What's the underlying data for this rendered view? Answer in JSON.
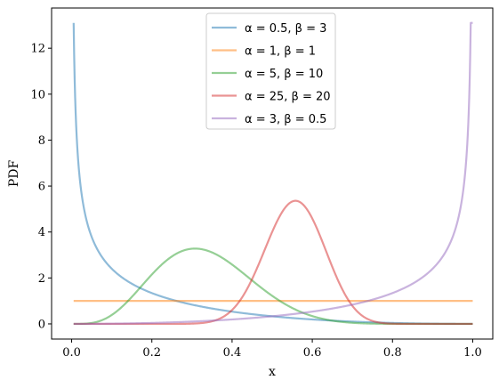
{
  "chart_data": {
    "type": "line",
    "title": "",
    "xlabel": "x",
    "ylabel": "PDF",
    "xlim": [
      -0.05,
      1.05
    ],
    "ylim": [
      -0.66,
      13.75
    ],
    "xticks": [
      0.0,
      0.2,
      0.4,
      0.6,
      0.8,
      1.0
    ],
    "xtick_labels": [
      "0.0",
      "0.2",
      "0.4",
      "0.6",
      "0.8",
      "1.0"
    ],
    "yticks": [
      0,
      2,
      4,
      6,
      8,
      10,
      12
    ],
    "ytick_labels": [
      "0",
      "2",
      "4",
      "6",
      "8",
      "10",
      "12"
    ],
    "x_range": [
      0.005,
      1.0
    ],
    "grid": false,
    "legend_position": "top-center",
    "series": [
      {
        "name": "α = 0.5, β = 3",
        "alpha": 0.5,
        "beta": 3,
        "color": "#1f77b4"
      },
      {
        "name": "α = 1, β = 1",
        "alpha": 1,
        "beta": 1,
        "color": "#ff7f0e"
      },
      {
        "name": "α = 5, β = 10",
        "alpha": 5,
        "beta": 10,
        "color": "#2ca02c"
      },
      {
        "name": "α = 25, β = 20",
        "alpha": 25,
        "beta": 20,
        "color": "#d62728"
      },
      {
        "name": "α = 3, β = 0.5",
        "alpha": 3,
        "beta": 0.5,
        "color": "#9467bd"
      }
    ]
  }
}
